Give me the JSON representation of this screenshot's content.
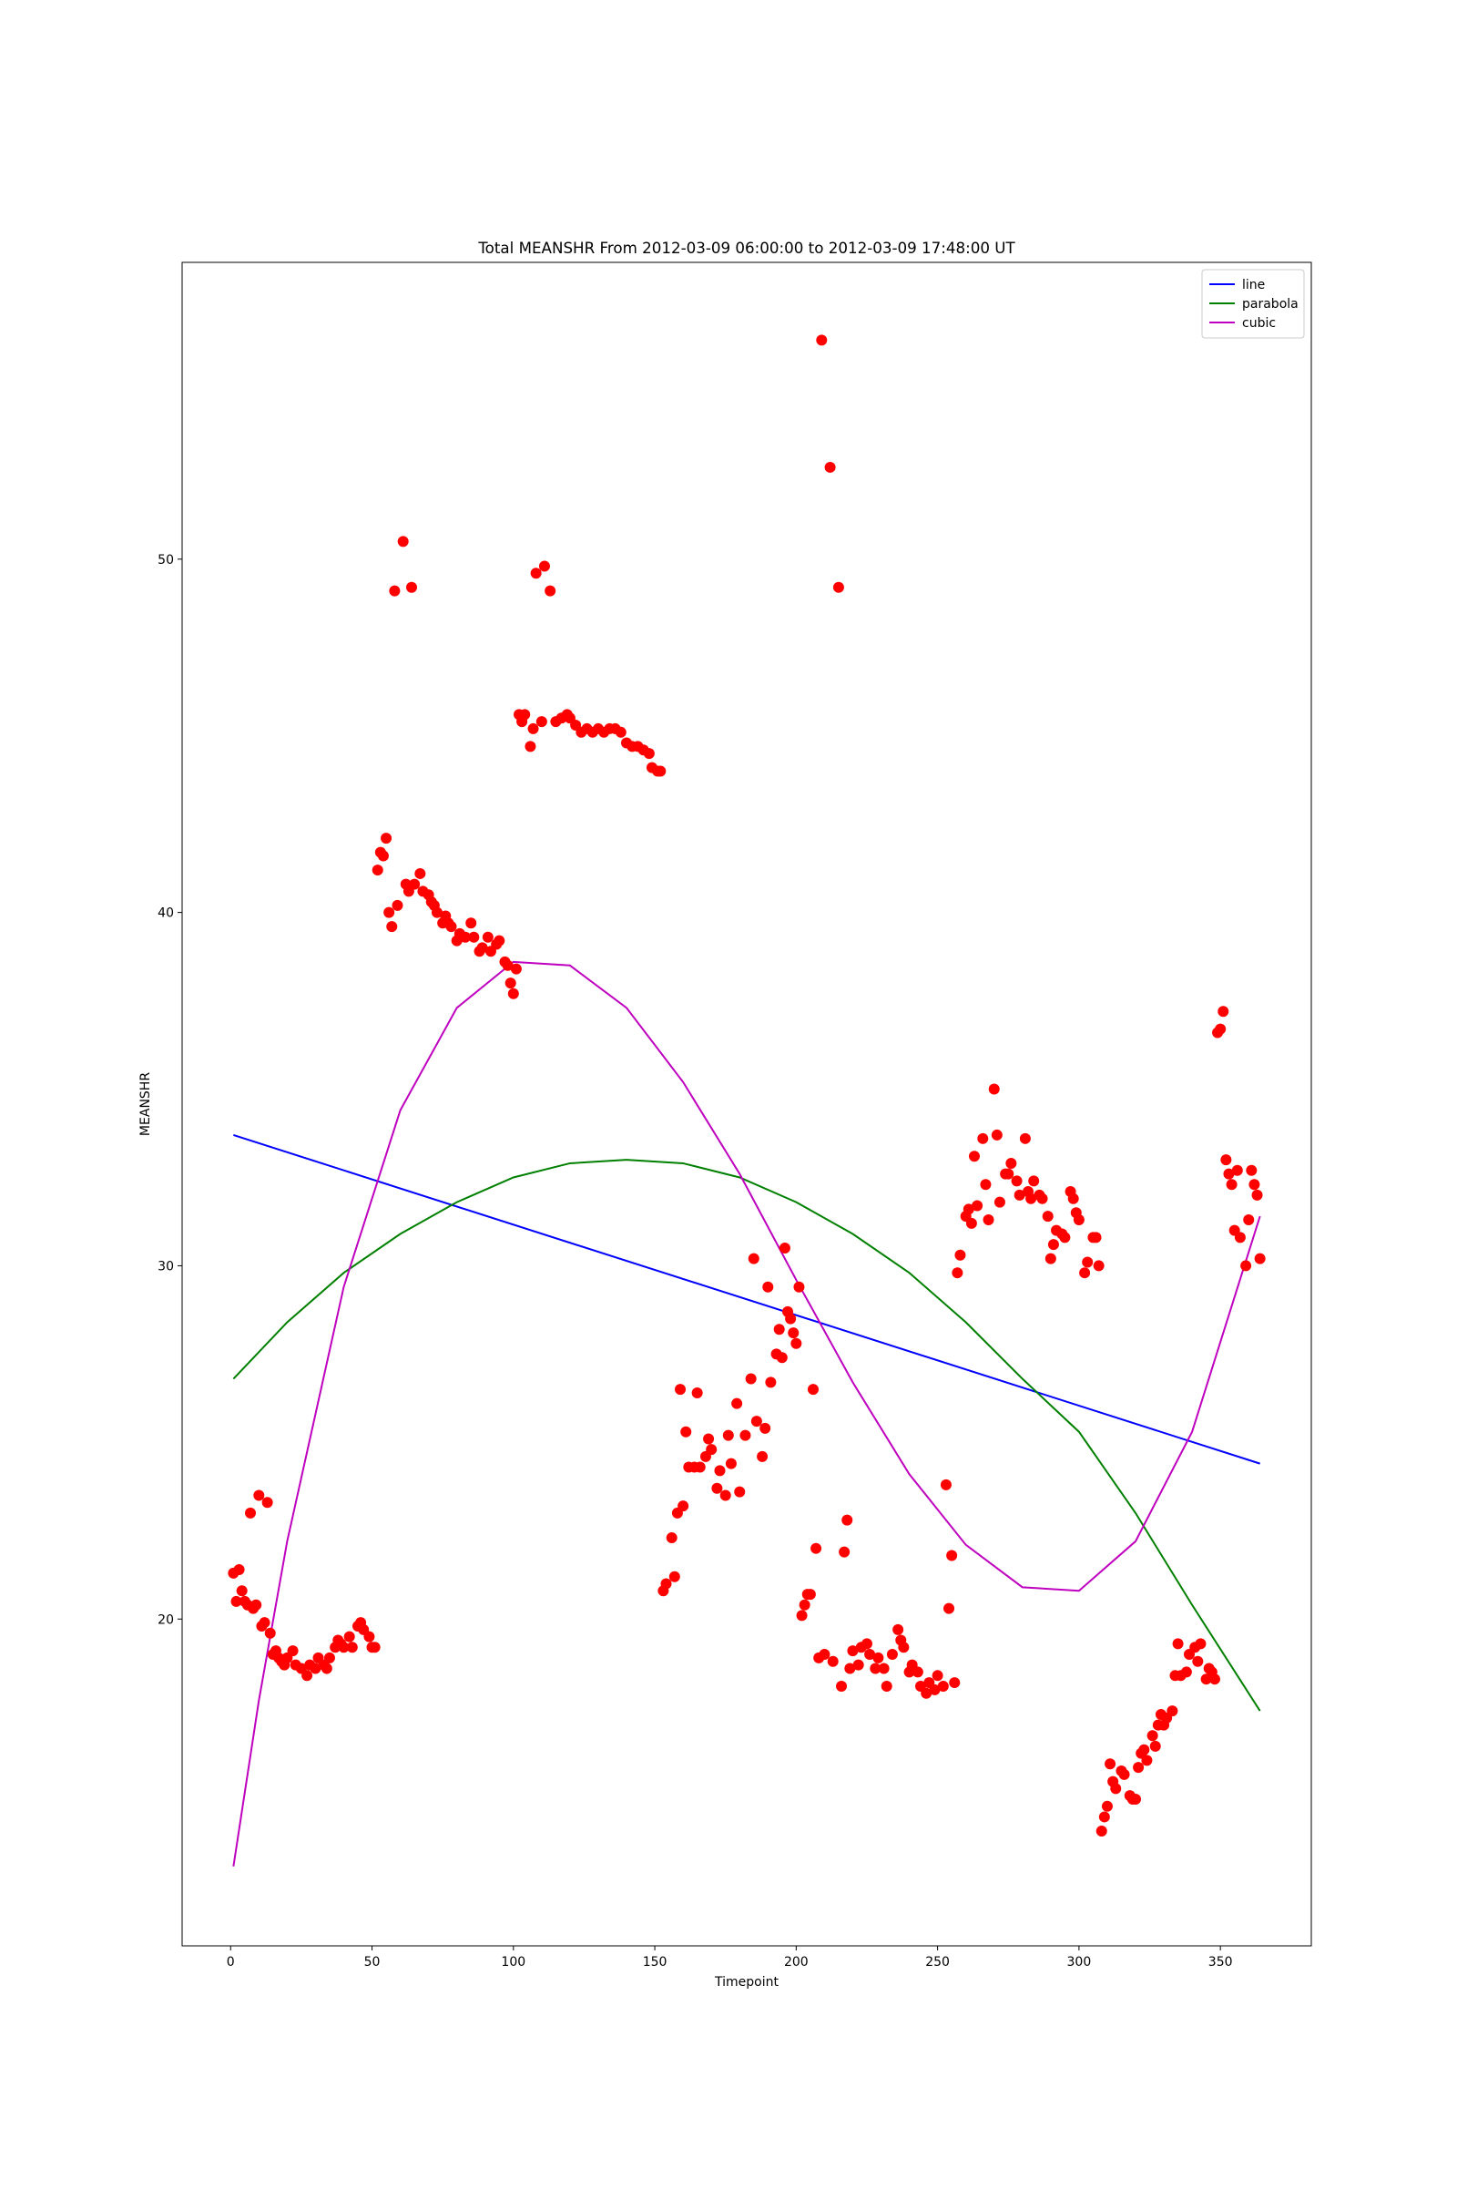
{
  "chart_data": {
    "type": "scatter",
    "title": "Total MEANSHR From 2012-03-09 06:00:00 to 2012-03-09 17:48:00 UT",
    "xlabel": "Timepoint",
    "ylabel": "MEANSHR",
    "xlim": [
      -17.15,
      382.15
    ],
    "ylim": [
      10.75,
      58.4
    ],
    "xticks": [
      0,
      50,
      100,
      150,
      200,
      250,
      300,
      350
    ],
    "yticks": [
      20,
      30,
      40,
      50
    ],
    "legend": "upper right",
    "grid": false,
    "series": [
      {
        "name": "line",
        "type": "line",
        "color": "#0000ff",
        "x": [
          1,
          364
        ],
        "values": [
          33.7,
          24.4
        ]
      },
      {
        "name": "parabola",
        "type": "line",
        "color": "#008000",
        "x": [
          1,
          20,
          40,
          60,
          80,
          100,
          120,
          140,
          160,
          180,
          200,
          220,
          240,
          260,
          280,
          300,
          320,
          340,
          364
        ],
        "values": [
          26.8,
          28.4,
          29.8,
          30.9,
          31.8,
          32.5,
          32.9,
          33.0,
          32.9,
          32.5,
          31.8,
          30.9,
          29.8,
          28.4,
          26.8,
          25.3,
          23.0,
          20.4,
          17.4
        ]
      },
      {
        "name": "cubic",
        "type": "line",
        "color": "#bf00bf",
        "x": [
          1,
          10,
          20,
          40,
          60,
          80,
          100,
          120,
          140,
          160,
          180,
          200,
          220,
          240,
          260,
          280,
          300,
          320,
          340,
          364
        ],
        "values": [
          13.0,
          17.7,
          22.2,
          29.4,
          34.4,
          37.3,
          38.6,
          38.5,
          37.3,
          35.2,
          32.6,
          29.6,
          26.7,
          24.1,
          22.1,
          20.9,
          20.8,
          22.2,
          25.3,
          31.4
        ]
      },
      {
        "type": "scatter",
        "color": "#ff0000",
        "x": [
          1,
          2,
          3,
          4,
          5,
          6,
          7,
          8,
          9,
          10,
          11,
          12,
          13,
          14,
          15,
          16,
          17,
          18,
          19,
          20,
          22,
          23,
          25,
          27,
          28,
          30,
          31,
          33,
          34,
          35,
          37,
          38,
          39,
          40,
          42,
          43,
          45,
          46,
          47,
          49,
          50,
          51,
          52,
          53,
          54,
          55,
          56,
          57,
          58,
          59,
          61,
          62,
          63,
          64,
          65,
          67,
          68,
          70,
          71,
          72,
          73,
          75,
          76,
          77,
          78,
          80,
          81,
          83,
          85,
          86,
          88,
          89,
          91,
          92,
          94,
          95,
          97,
          98,
          99,
          100,
          101,
          102,
          103,
          104,
          106,
          107,
          108,
          110,
          111,
          113,
          115,
          117,
          119,
          120,
          122,
          124,
          126,
          128,
          130,
          132,
          134,
          136,
          138,
          140,
          142,
          144,
          146,
          148,
          149,
          151,
          152,
          153,
          154,
          156,
          157,
          158,
          159,
          160,
          161,
          162,
          164,
          165,
          166,
          168,
          169,
          170,
          172,
          173,
          175,
          176,
          177,
          179,
          180,
          182,
          184,
          185,
          186,
          188,
          189,
          190,
          191,
          193,
          194,
          195,
          196,
          197,
          198,
          199,
          200,
          201,
          202,
          203,
          204,
          205,
          206,
          207,
          208,
          209,
          210,
          212,
          213,
          215,
          216,
          217,
          218,
          219,
          220,
          222,
          223,
          225,
          226,
          228,
          229,
          231,
          232,
          234,
          236,
          237,
          238,
          240,
          241,
          243,
          244,
          246,
          247,
          249,
          250,
          252,
          253,
          254,
          255,
          256,
          257,
          258,
          260,
          261,
          262,
          263,
          264,
          266,
          267,
          268,
          270,
          271,
          272,
          274,
          275,
          276,
          278,
          279,
          281,
          282,
          283,
          284,
          286,
          287,
          289,
          290,
          291,
          292,
          294,
          295,
          297,
          298,
          299,
          300,
          302,
          303,
          305,
          306,
          307,
          308,
          309,
          310,
          311,
          312,
          313,
          315,
          316,
          318,
          319,
          320,
          321,
          322,
          323,
          324,
          326,
          327,
          328,
          329,
          330,
          331,
          333,
          334,
          335,
          336,
          338,
          339,
          341,
          342,
          343,
          345,
          346,
          347,
          348,
          349,
          350,
          351,
          352,
          353,
          354,
          355,
          356,
          357,
          359,
          360,
          361,
          362,
          363,
          364
        ],
        "values": [
          21.3,
          20.5,
          21.4,
          20.8,
          20.5,
          20.4,
          23.0,
          20.3,
          20.4,
          23.5,
          19.8,
          19.9,
          23.3,
          19.6,
          19.0,
          19.1,
          18.9,
          18.8,
          18.7,
          18.9,
          19.1,
          18.7,
          18.6,
          18.4,
          18.7,
          18.6,
          18.9,
          18.7,
          18.6,
          18.9,
          19.2,
          19.4,
          19.3,
          19.2,
          19.5,
          19.2,
          19.8,
          19.9,
          19.7,
          19.5,
          19.2,
          19.2,
          41.2,
          41.7,
          41.6,
          42.1,
          40.0,
          39.6,
          49.1,
          40.2,
          50.5,
          40.8,
          40.6,
          49.2,
          40.8,
          41.1,
          40.6,
          40.5,
          40.3,
          40.2,
          40.0,
          39.7,
          39.9,
          39.7,
          39.6,
          39.2,
          39.4,
          39.3,
          39.7,
          39.3,
          38.9,
          39.0,
          39.3,
          38.9,
          39.1,
          39.2,
          38.6,
          38.5,
          38.0,
          37.7,
          38.4,
          45.6,
          45.4,
          45.6,
          44.7,
          45.2,
          49.6,
          45.4,
          49.8,
          49.1,
          45.4,
          45.5,
          45.6,
          45.5,
          45.3,
          45.1,
          45.2,
          45.1,
          45.2,
          45.1,
          45.2,
          45.2,
          45.1,
          44.8,
          44.7,
          44.7,
          44.6,
          44.5,
          44.1,
          44.0,
          44.0,
          20.8,
          21.0,
          22.3,
          21.2,
          23.0,
          26.5,
          23.2,
          25.3,
          24.3,
          24.3,
          26.4,
          24.3,
          24.6,
          25.1,
          24.8,
          23.7,
          24.2,
          23.5,
          25.2,
          24.4,
          26.1,
          23.6,
          25.2,
          26.8,
          30.2,
          25.6,
          24.6,
          25.4,
          29.4,
          26.7,
          27.5,
          28.2,
          27.4,
          30.5,
          28.7,
          28.5,
          28.1,
          27.8,
          29.4,
          20.1,
          20.4,
          20.7,
          20.7,
          26.5,
          22.0,
          18.9,
          56.2,
          19.0,
          52.6,
          18.8,
          49.2,
          18.1,
          21.9,
          22.8,
          18.6,
          19.1,
          18.7,
          19.2,
          19.3,
          19.0,
          18.6,
          18.9,
          18.6,
          18.1,
          19.0,
          19.7,
          19.4,
          19.2,
          18.5,
          18.7,
          18.5,
          18.1,
          17.9,
          18.2,
          18.0,
          18.4,
          18.1,
          23.8,
          20.3,
          21.8,
          18.2,
          29.8,
          30.3,
          31.4,
          31.6,
          31.2,
          33.1,
          31.7,
          33.6,
          32.3,
          31.3,
          35.0,
          33.7,
          31.8,
          32.6,
          32.6,
          32.9,
          32.4,
          32.0,
          33.6,
          32.1,
          31.9,
          32.4,
          32.0,
          31.9,
          31.4,
          30.2,
          30.6,
          31.0,
          30.9,
          30.8,
          32.1,
          31.9,
          31.5,
          31.3,
          29.8,
          30.1,
          30.8,
          30.8,
          30.0,
          14.0,
          14.4,
          14.7,
          15.9,
          15.4,
          15.2,
          15.7,
          15.6,
          15.0,
          14.9,
          14.9,
          15.8,
          16.2,
          16.3,
          16.0,
          16.7,
          16.4,
          17.0,
          17.3,
          17.0,
          17.2,
          17.4,
          18.4,
          19.3,
          18.4,
          18.5,
          19.0,
          19.2,
          18.8,
          19.3,
          18.3,
          18.6,
          18.5,
          18.3,
          36.6,
          36.7,
          37.2,
          33.0,
          32.6,
          32.3,
          31.0,
          32.7,
          30.8,
          30.0,
          31.3,
          32.7,
          32.3,
          32.0,
          30.2
        ]
      }
    ]
  }
}
